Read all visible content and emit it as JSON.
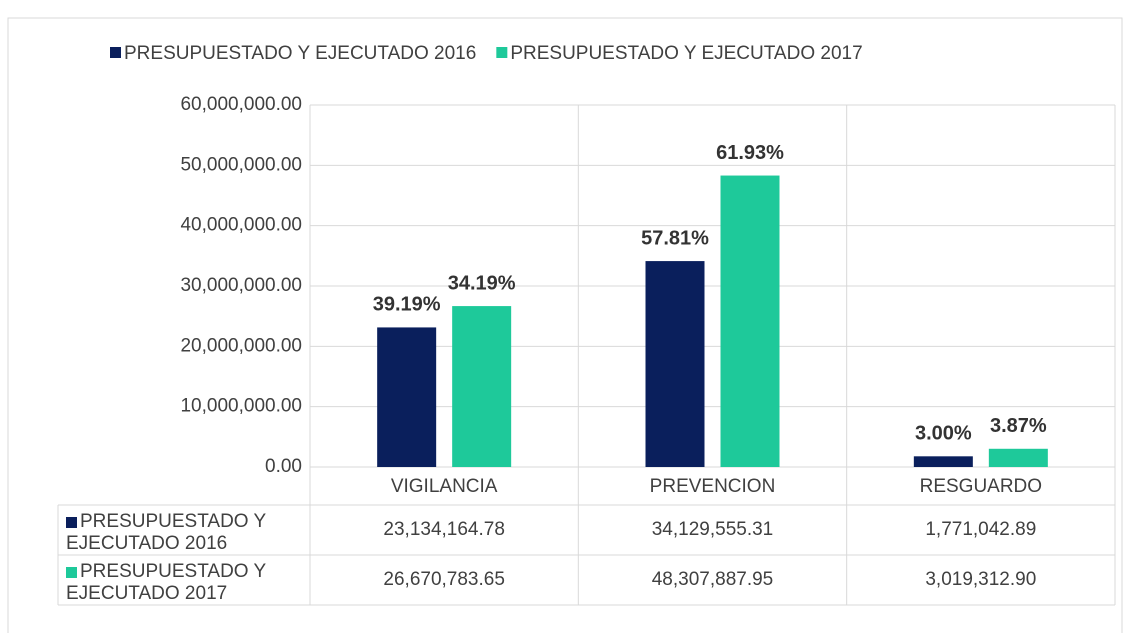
{
  "chart_data": {
    "type": "bar",
    "categories": [
      "VIGILANCIA",
      "PREVENCION",
      "RESGUARDO"
    ],
    "series": [
      {
        "name": "PRESUPUESTADO Y EJECUTADO 2016",
        "color": "#0a1f5c",
        "values": [
          23134164.78,
          34129555.31,
          1771042.89
        ],
        "value_labels": [
          "23,134,164.78",
          "34,129,555.31",
          "1,771,042.89"
        ],
        "share_labels": [
          "39.19%",
          "57.81%",
          "3.00%"
        ]
      },
      {
        "name": "PRESUPUESTADO Y EJECUTADO 2017",
        "color": "#1ec99a",
        "values": [
          26670783.65,
          48307887.95,
          3019312.9
        ],
        "value_labels": [
          "26,670,783.65",
          "48,307,887.95",
          "3,019,312.90"
        ],
        "share_labels": [
          "34.19%",
          "61.93%",
          "3.87%"
        ]
      }
    ],
    "ylim": [
      0,
      60000000
    ],
    "yticks": [
      {
        "value": 0,
        "label": "0.00"
      },
      {
        "value": 10000000,
        "label": "10,000,000.00"
      },
      {
        "value": 20000000,
        "label": "20,000,000.00"
      },
      {
        "value": 30000000,
        "label": "30,000,000.00"
      },
      {
        "value": 40000000,
        "label": "40,000,000.00"
      },
      {
        "value": 50000000,
        "label": "50,000,000.00"
      },
      {
        "value": 60000000,
        "label": "60,000,000.00"
      }
    ],
    "grid": true,
    "legend": "top"
  }
}
